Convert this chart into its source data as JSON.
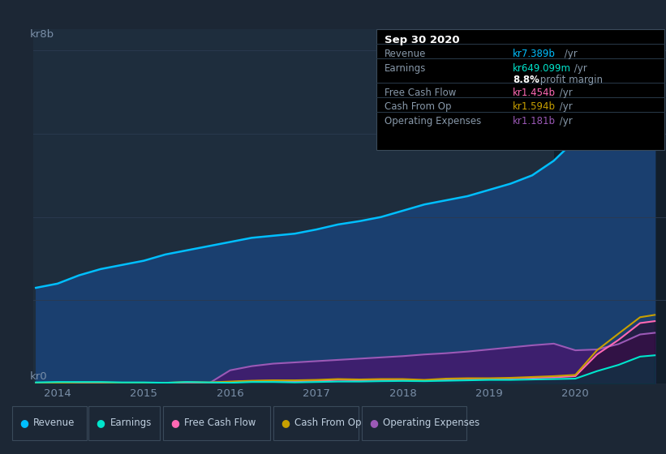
{
  "bg_color": "#1c2735",
  "plot_bg_color": "#1c2735",
  "chart_bg_color": "#1e2d3d",
  "grid_color": "#2a3a50",
  "fig_width": 8.21,
  "fig_height": 5.6,
  "dpi": 100,
  "ylabel_text": "kr8b",
  "y0_text": "kr0",
  "x_ticks": [
    2014,
    2015,
    2016,
    2017,
    2018,
    2019,
    2020
  ],
  "ylim": [
    0,
    8500000000.0
  ],
  "highlight_start": 2019.75,
  "revenue_color": "#00bfff",
  "revenue_fill": "#1a3f6f",
  "earnings_color": "#00e5cc",
  "earnings_fill": "#004444",
  "free_cashflow_color": "#ff69b4",
  "cashfromop_color": "#c8a000",
  "opex_color": "#9b59b6",
  "opex_fill": "#3d1f6e",
  "revenue": {
    "x": [
      2013.75,
      2014.0,
      2014.25,
      2014.5,
      2014.75,
      2015.0,
      2015.25,
      2015.5,
      2015.75,
      2016.0,
      2016.25,
      2016.5,
      2016.75,
      2017.0,
      2017.25,
      2017.5,
      2017.75,
      2018.0,
      2018.25,
      2018.5,
      2018.75,
      2019.0,
      2019.25,
      2019.5,
      2019.75,
      2020.0,
      2020.25,
      2020.5,
      2020.75,
      2020.92
    ],
    "y": [
      2300000000.0,
      2400000000.0,
      2600000000.0,
      2750000000.0,
      2850000000.0,
      2950000000.0,
      3100000000.0,
      3200000000.0,
      3300000000.0,
      3400000000.0,
      3500000000.0,
      3550000000.0,
      3600000000.0,
      3700000000.0,
      3820000000.0,
      3900000000.0,
      4000000000.0,
      4150000000.0,
      4300000000.0,
      4400000000.0,
      4500000000.0,
      4650000000.0,
      4800000000.0,
      5000000000.0,
      5350000000.0,
      5850000000.0,
      6350000000.0,
      6900000000.0,
      7390000000.0,
      7600000000.0
    ]
  },
  "earnings": {
    "x": [
      2013.75,
      2014.0,
      2014.25,
      2014.5,
      2014.75,
      2015.0,
      2015.25,
      2015.5,
      2015.75,
      2016.0,
      2016.25,
      2016.5,
      2016.75,
      2017.0,
      2017.25,
      2017.5,
      2017.75,
      2018.0,
      2018.25,
      2018.5,
      2018.75,
      2019.0,
      2019.25,
      2019.5,
      2019.75,
      2020.0,
      2020.25,
      2020.5,
      2020.75,
      2020.92
    ],
    "y": [
      30000000.0,
      40000000.0,
      40000000.0,
      40000000.0,
      30000000.0,
      30000000.0,
      20000000.0,
      40000000.0,
      30000000.0,
      20000000.0,
      40000000.0,
      40000000.0,
      30000000.0,
      40000000.0,
      50000000.0,
      50000000.0,
      60000000.0,
      65000000.0,
      60000000.0,
      70000000.0,
      80000000.0,
      90000000.0,
      90000000.0,
      100000000.0,
      110000000.0,
      120000000.0,
      300000000.0,
      450000000.0,
      649000000.0,
      680000000.0
    ]
  },
  "free_cashflow": {
    "x": [
      2013.75,
      2014.0,
      2014.25,
      2014.5,
      2014.75,
      2015.0,
      2015.25,
      2015.5,
      2015.75,
      2016.0,
      2016.25,
      2016.5,
      2016.75,
      2017.0,
      2017.25,
      2017.5,
      2017.75,
      2018.0,
      2018.25,
      2018.5,
      2018.75,
      2019.0,
      2019.25,
      2019.5,
      2019.75,
      2020.0,
      2020.25,
      2020.5,
      2020.75,
      2020.92
    ],
    "y": [
      10000000.0,
      10000000.0,
      20000000.0,
      20000000.0,
      10000000.0,
      10000000.0,
      10000000.0,
      30000000.0,
      20000000.0,
      40000000.0,
      60000000.0,
      70000000.0,
      60000000.0,
      70000000.0,
      90000000.0,
      80000000.0,
      90000000.0,
      90000000.0,
      70000000.0,
      100000000.0,
      110000000.0,
      110000000.0,
      120000000.0,
      140000000.0,
      150000000.0,
      180000000.0,
      700000000.0,
      1050000000.0,
      1454000000.0,
      1500000000.0
    ]
  },
  "cashfromop": {
    "x": [
      2013.75,
      2014.0,
      2014.25,
      2014.5,
      2014.75,
      2015.0,
      2015.25,
      2015.5,
      2015.75,
      2016.0,
      2016.25,
      2016.5,
      2016.75,
      2017.0,
      2017.25,
      2017.5,
      2017.75,
      2018.0,
      2018.25,
      2018.5,
      2018.75,
      2019.0,
      2019.25,
      2019.5,
      2019.75,
      2020.0,
      2020.25,
      2020.5,
      2020.75,
      2020.92
    ],
    "y": [
      20000000.0,
      20000000.0,
      30000000.0,
      30000000.0,
      20000000.0,
      20000000.0,
      20000000.0,
      40000000.0,
      30000000.0,
      50000000.0,
      70000000.0,
      80000000.0,
      80000000.0,
      90000000.0,
      110000000.0,
      100000000.0,
      110000000.0,
      110000000.0,
      90000000.0,
      120000000.0,
      130000000.0,
      130000000.0,
      140000000.0,
      160000000.0,
      180000000.0,
      210000000.0,
      800000000.0,
      1200000000.0,
      1594000000.0,
      1650000000.0
    ]
  },
  "opex": {
    "x": [
      2013.75,
      2014.0,
      2014.25,
      2014.5,
      2014.75,
      2015.0,
      2015.25,
      2015.5,
      2015.75,
      2016.0,
      2016.25,
      2016.5,
      2016.75,
      2017.0,
      2017.25,
      2017.5,
      2017.75,
      2018.0,
      2018.25,
      2018.5,
      2018.75,
      2019.0,
      2019.25,
      2019.5,
      2019.75,
      2020.0,
      2020.25,
      2020.5,
      2020.75,
      2020.92
    ],
    "y": [
      0.0,
      0.0,
      0.0,
      0.0,
      0.0,
      0.0,
      0.0,
      0.0,
      0.0,
      320000000.0,
      420000000.0,
      480000000.0,
      510000000.0,
      540000000.0,
      570000000.0,
      600000000.0,
      630000000.0,
      660000000.0,
      700000000.0,
      730000000.0,
      770000000.0,
      820000000.0,
      870000000.0,
      920000000.0,
      960000000.0,
      800000000.0,
      820000000.0,
      950000000.0,
      1181000000.0,
      1220000000.0
    ]
  },
  "info_box": {
    "date": "Sep 30 2020",
    "revenue_label": "Revenue",
    "revenue_value": "kr7.389b",
    "revenue_suffix": " /yr",
    "revenue_color": "#00bfff",
    "earnings_label": "Earnings",
    "earnings_value": "kr649.099m",
    "earnings_suffix": " /yr",
    "earnings_color": "#00e5cc",
    "profit_margin_bold": "8.8%",
    "profit_margin_text": " profit margin",
    "fcf_label": "Free Cash Flow",
    "fcf_value": "kr1.454b",
    "fcf_suffix": " /yr",
    "fcf_color": "#ff69b4",
    "cashop_label": "Cash From Op",
    "cashop_value": "kr1.594b",
    "cashop_suffix": " /yr",
    "cashop_color": "#c8a000",
    "opex_label": "Operating Expenses",
    "opex_value": "kr1.181b",
    "opex_suffix": " /yr",
    "opex_color": "#9b59b6"
  },
  "legend_items": [
    {
      "label": "Revenue",
      "color": "#00bfff"
    },
    {
      "label": "Earnings",
      "color": "#00e5cc"
    },
    {
      "label": "Free Cash Flow",
      "color": "#ff69b4"
    },
    {
      "label": "Cash From Op",
      "color": "#c8a000"
    },
    {
      "label": "Operating Expenses",
      "color": "#9b59b6"
    }
  ]
}
